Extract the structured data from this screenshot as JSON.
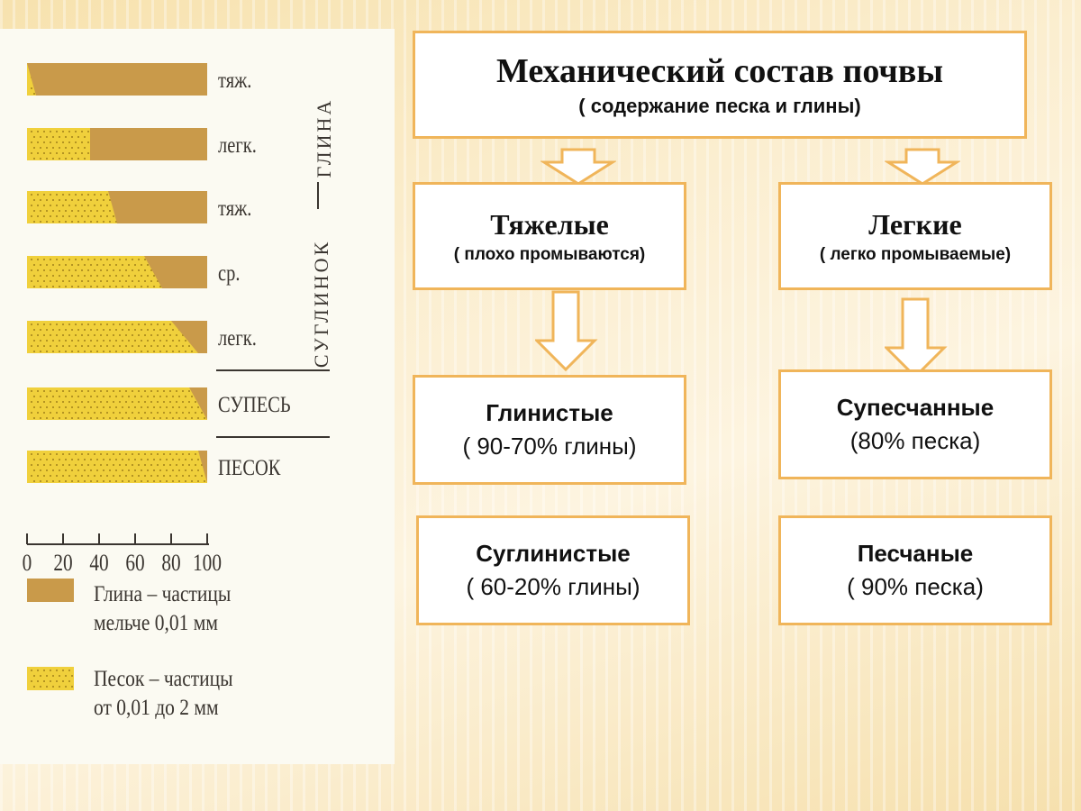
{
  "scale": {
    "rows": [
      {
        "label": "тяж.",
        "sand_start": 0,
        "sand_end": 5,
        "sand_top_start": 0,
        "sand_top_end": 0
      },
      {
        "label": "легк.",
        "sand_start": 0,
        "sand_end": 35,
        "sand_top_start": 0,
        "sand_top_end": 35
      },
      {
        "label": "тяж.",
        "sand_start": 0,
        "sand_end": 50,
        "sand_top_start": 0,
        "sand_top_end": 45
      },
      {
        "label": "ср.",
        "sand_start": 0,
        "sand_end": 75,
        "sand_top_start": 0,
        "sand_top_end": 65
      },
      {
        "label": "легк.",
        "sand_start": 0,
        "sand_end": 95,
        "sand_top_start": 0,
        "sand_top_end": 80
      },
      {
        "label": "СУПЕСЬ",
        "sand_start": 0,
        "sand_end": 100,
        "sand_top_start": 0,
        "sand_top_end": 90
      },
      {
        "label": "ПЕСОК",
        "sand_start": 0,
        "sand_end": 100,
        "sand_top_start": 0,
        "sand_top_end": 95
      }
    ],
    "group_clay": "ГЛИНА",
    "group_loam": "СУГЛИНОК",
    "ticks": [
      "0",
      "20",
      "40",
      "60",
      "80",
      "100"
    ],
    "legend": {
      "clay_line1": "Глина – частицы",
      "clay_line2": "мельче 0,01 мм",
      "sand_line1": "Песок – частицы",
      "sand_line2": "от 0,01 до 2 мм"
    },
    "colors": {
      "clay": "#c99a4a",
      "sand": "#f0d03c",
      "dots": "#8a6a10"
    }
  },
  "diagram": {
    "main_title": "Механический состав почвы",
    "main_subtitle": "( содержание песка и глины)",
    "heavy_title": "Тяжелые",
    "heavy_sub": "( плохо промываются)",
    "light_title": "Легкие",
    "light_sub": "( легко промываемые)",
    "clay_title": "Глинистые",
    "clay_sub": "( 90-70% глины)",
    "loam_title": "Суглинистые",
    "loam_sub": "( 60-20% глины)",
    "sandyloam_title": "Супесчанные",
    "sandyloam_sub": "(80% песка)",
    "sandy_title": "Песчаные",
    "sandy_sub": "( 90% песка)",
    "colors": {
      "border": "#f0b55a",
      "arrow_fill": "#ffffff"
    }
  }
}
